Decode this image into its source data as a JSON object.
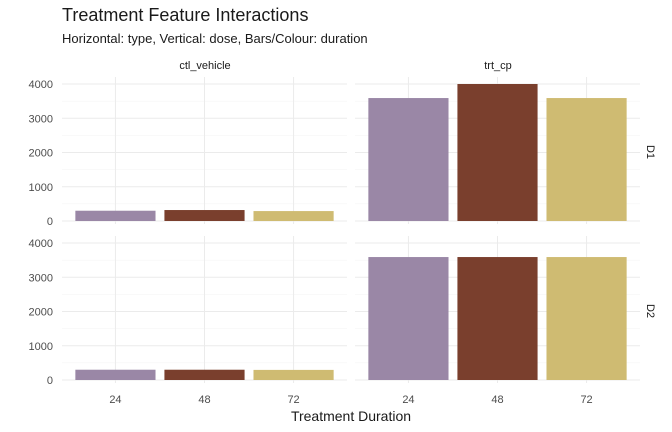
{
  "chart_data": {
    "type": "bar",
    "title": "Treatment Feature Interactions",
    "subtitle": "Horizontal: type, Vertical: dose, Bars/Colour: duration",
    "xlabel": "Treatment Duration",
    "ylabel": "",
    "categories": [
      "24",
      "48",
      "72"
    ],
    "ylim": [
      0,
      4000
    ],
    "yticks": [
      "0",
      "1000",
      "2000",
      "3000",
      "4000"
    ],
    "grid": true,
    "legend": "none",
    "colors": [
      "#9a87a6",
      "#7a3f2d",
      "#cfbb72"
    ],
    "facet_columns": [
      "ctl_vehicle",
      "trt_cp"
    ],
    "facet_rows": [
      "D1",
      "D2"
    ],
    "panels": [
      {
        "col": "ctl_vehicle",
        "row": "D1",
        "values": [
          300,
          320,
          290
        ]
      },
      {
        "col": "trt_cp",
        "row": "D1",
        "values": [
          3590,
          4000,
          3590
        ]
      },
      {
        "col": "ctl_vehicle",
        "row": "D2",
        "values": [
          300,
          300,
          295
        ]
      },
      {
        "col": "trt_cp",
        "row": "D2",
        "values": [
          3590,
          3590,
          3590
        ]
      }
    ]
  }
}
